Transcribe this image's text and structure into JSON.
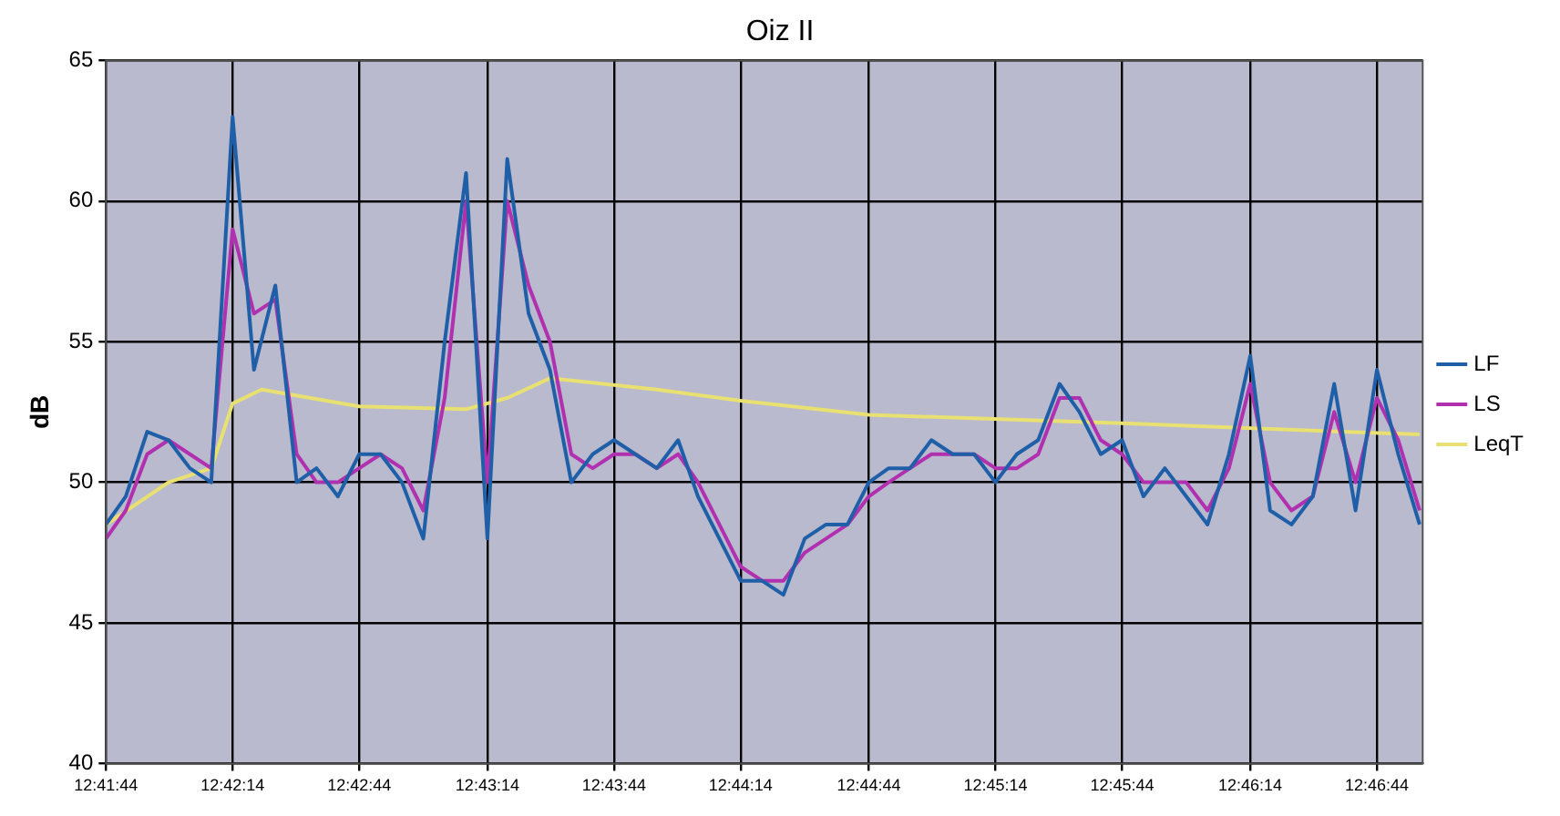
{
  "chart_data": {
    "type": "line",
    "title": "Oiz II",
    "ylabel": "dB",
    "x": [
      12.6956,
      12.6969,
      12.6983,
      12.6997,
      12.7011,
      12.7025,
      12.7039,
      12.7053,
      12.7067,
      12.7081,
      12.7094,
      12.7108,
      12.7122,
      12.7136,
      12.715,
      12.7164,
      12.7178,
      12.7192,
      12.7206,
      12.7219,
      12.7233,
      12.7247,
      12.7261,
      12.7275,
      12.7289,
      12.7303,
      12.7317,
      12.7331,
      12.7344,
      12.7358,
      12.7372,
      12.7386,
      12.74,
      12.7414,
      12.7428,
      12.7442,
      12.7456,
      12.7469,
      12.7483,
      12.7497,
      12.7511,
      12.7525,
      12.7539,
      12.7553,
      12.7567,
      12.7581,
      12.7594,
      12.7608,
      12.7622,
      12.7636,
      12.765,
      12.7664,
      12.7678,
      12.7692,
      12.7706,
      12.7719,
      12.7733,
      12.7747,
      12.7761,
      12.7775,
      12.7789,
      12.7803,
      12.7817
    ],
    "series": [
      {
        "name": "LF",
        "color": "#1f5fa8",
        "values": [
          48.5,
          49.5,
          51.8,
          51.5,
          50.5,
          50,
          63,
          54,
          57,
          50,
          50.5,
          49.5,
          51,
          51,
          50,
          48,
          55,
          61,
          48,
          61.5,
          56,
          54,
          50,
          51,
          51.5,
          51,
          50.5,
          51.5,
          49.5,
          48,
          46.5,
          46.5,
          46,
          48,
          48.5,
          48.5,
          50,
          50.5,
          50.5,
          51.5,
          51,
          51,
          50,
          51,
          51.5,
          53.5,
          52.5,
          51,
          51.5,
          49.5,
          50.5,
          49.5,
          48.5,
          51,
          54.5,
          49,
          48.5,
          49.5,
          53.5,
          49,
          54,
          51,
          48.5
        ]
      },
      {
        "name": "LS",
        "color": "#b030b0",
        "values": [
          48,
          49,
          51,
          51.5,
          51,
          50.5,
          59,
          56,
          56.5,
          51,
          50,
          50,
          50.5,
          51,
          50.5,
          49,
          53,
          60,
          50,
          60,
          57,
          55,
          51,
          50.5,
          51,
          51,
          50.5,
          51,
          50,
          48.5,
          47,
          46.5,
          46.5,
          47.5,
          48,
          48.5,
          49.5,
          50,
          50.5,
          51,
          51,
          51,
          50.5,
          50.5,
          51,
          53,
          53,
          51.5,
          51,
          50,
          50,
          50,
          49,
          50.5,
          53.5,
          50,
          49,
          49.5,
          52.5,
          50,
          53,
          51.5,
          49
        ]
      },
      {
        "name": "LeqT",
        "color": "#e8e070",
        "x": [
          12.6956,
          12.6997,
          12.7025,
          12.7039,
          12.7058,
          12.7122,
          12.7192,
          12.7219,
          12.7247,
          12.7317,
          12.7372,
          12.7456,
          12.7622,
          12.7817
        ],
        "values": [
          48.5,
          50,
          50.5,
          52.8,
          53.3,
          52.7,
          52.6,
          53,
          53.7,
          53.3,
          52.9,
          52.4,
          52.1,
          51.7
        ]
      }
    ],
    "xlim": [
      12.6956,
      12.7819
    ],
    "xticks": [
      {
        "value": 12.6956,
        "label": "12:41:44"
      },
      {
        "value": 12.7039,
        "label": "12:42:14"
      },
      {
        "value": 12.7122,
        "label": "12:42:44"
      },
      {
        "value": 12.7206,
        "label": "12:43:14"
      },
      {
        "value": 12.7289,
        "label": "12:43:44"
      },
      {
        "value": 12.7372,
        "label": "12:44:14"
      },
      {
        "value": 12.7456,
        "label": "12:44:44"
      },
      {
        "value": 12.7539,
        "label": "12:45:14"
      },
      {
        "value": 12.7622,
        "label": "12:45:44"
      },
      {
        "value": 12.7706,
        "label": "12:46:14"
      },
      {
        "value": 12.7789,
        "label": "12:46:44"
      }
    ],
    "ylim": [
      40,
      65
    ],
    "yticks": [
      40,
      45,
      50,
      55,
      60,
      65
    ],
    "grid": true,
    "legend": "right",
    "marker": "none",
    "line_style": "solid"
  }
}
